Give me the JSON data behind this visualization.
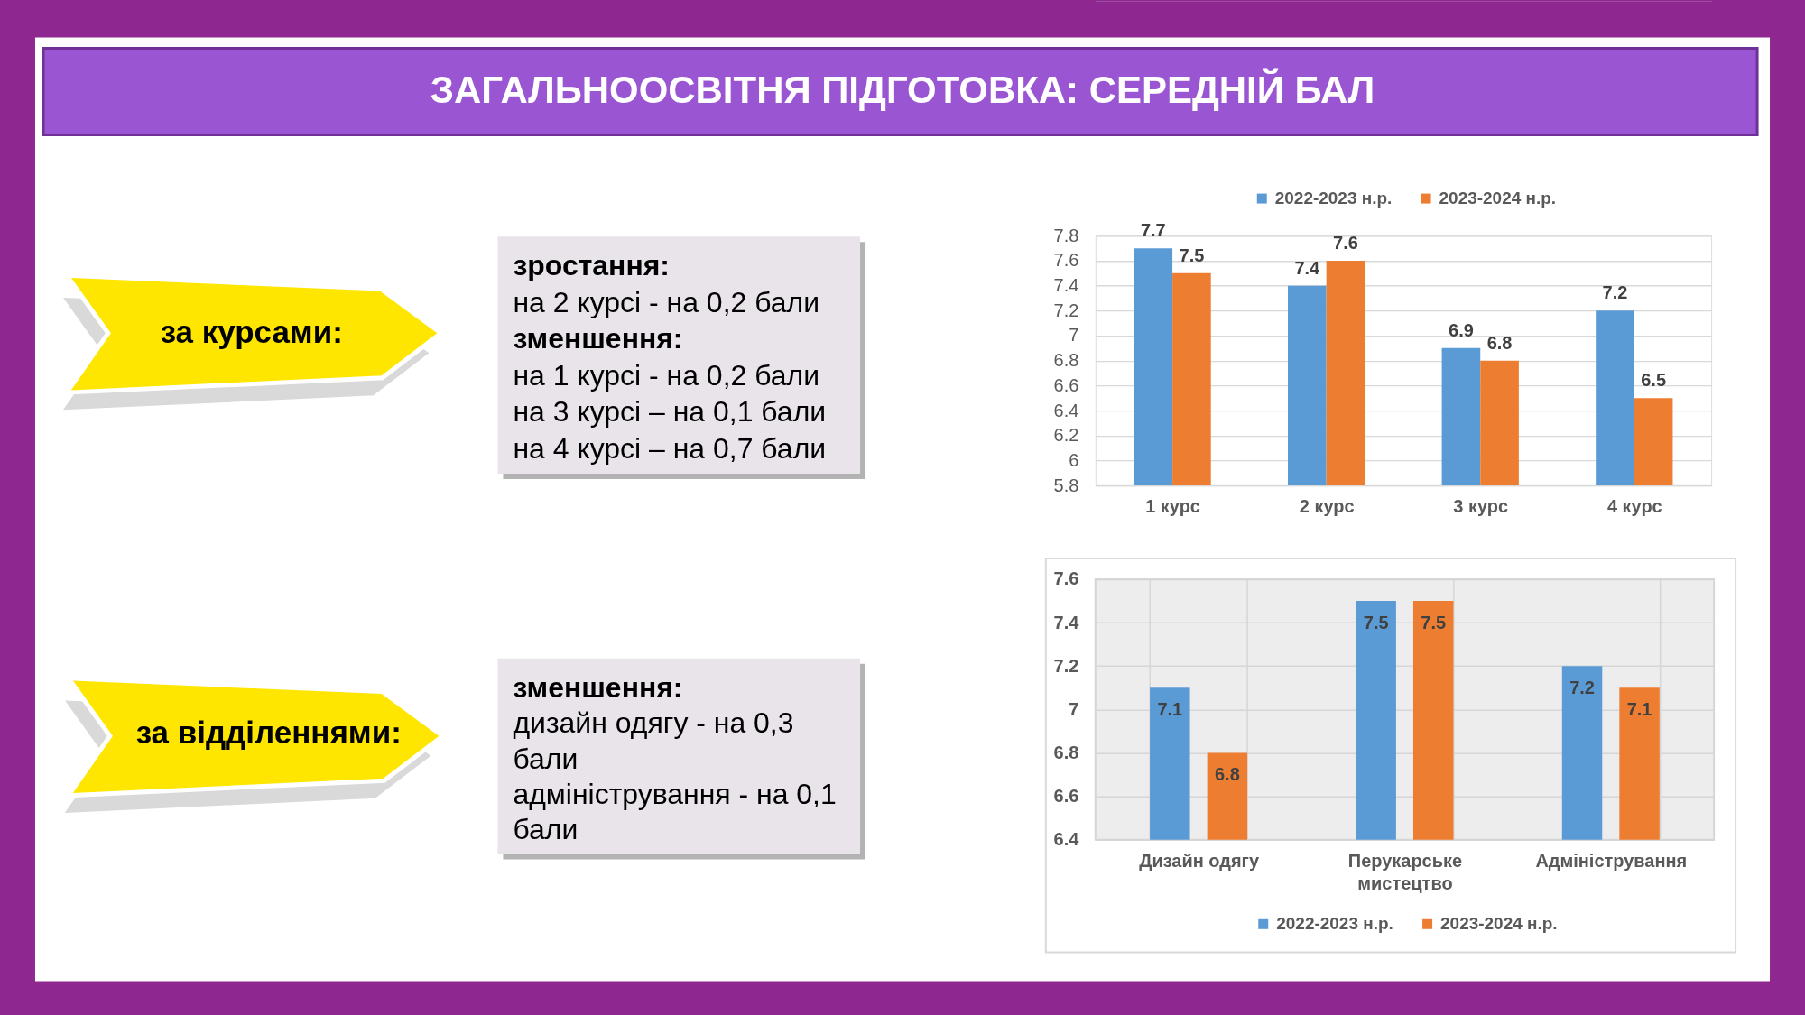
{
  "chart_data": [
    {
      "type": "other",
      "title": "ЗАГАЛЬНООСВІТНЯ ПІДГОТОВКА: СЕРЕДНІЙ БАЛ"
    },
    {
      "type": "other",
      "title": "за курсами:"
    },
    {
      "type": "other",
      "title": "зростання:",
      "annotations": [
        "на 2 курсі - на 0,2 бали"
      ]
    },
    {
      "type": "other",
      "title": "зменшення:",
      "annotations": [
        "на 1 курсі - на 0,2 бали",
        "на 3 курсі – на 0,1 бали",
        "на 4 курсі – на 0,7 бали"
      ]
    },
    {
      "type": "bar",
      "categories": [
        "1 курс",
        "2 курс",
        "3 курс",
        "4 курс"
      ],
      "series": [
        {
          "name": "2022-2023 н.р.",
          "color": "#5b9bd5",
          "values": [
            7.7,
            7.4,
            6.9,
            7.2
          ]
        },
        {
          "name": "2023-2024 н.р.",
          "color": "#ed7d31",
          "values": [
            7.5,
            7.6,
            6.8,
            6.5
          ]
        }
      ],
      "ylim": [
        5.8,
        7.8
      ],
      "yticks": [
        5.8,
        6,
        6.2,
        6.4,
        6.6,
        6.8,
        7,
        7.2,
        7.4,
        7.6,
        7.8
      ],
      "grid": "y",
      "legend": "top",
      "data_labels": true
    },
    {
      "type": "other",
      "title": "за відділеннями:"
    },
    {
      "type": "other",
      "title": "зменшення:",
      "annotations": [
        "дизайн одягу -  на 0,3 бали",
        "адміністрування - на 0,1 бали"
      ]
    },
    {
      "type": "bar",
      "categories": [
        "Дизайн одягу",
        "Перукарське мистецтво",
        "Адміністрування"
      ],
      "series": [
        {
          "name": "2022-2023 н.р.",
          "color": "#5b9bd5",
          "values": [
            7.1,
            7.5,
            7.2
          ]
        },
        {
          "name": "2023-2024 н.р.",
          "color": "#ed7d31",
          "values": [
            6.8,
            7.5,
            7.1
          ]
        }
      ],
      "ylim": [
        6.4,
        7.6
      ],
      "yticks": [
        6.4,
        6.6,
        6.8,
        7,
        7.2,
        7.4,
        7.6
      ],
      "grid": true,
      "legend": "bottom",
      "data_labels": true
    }
  ]
}
